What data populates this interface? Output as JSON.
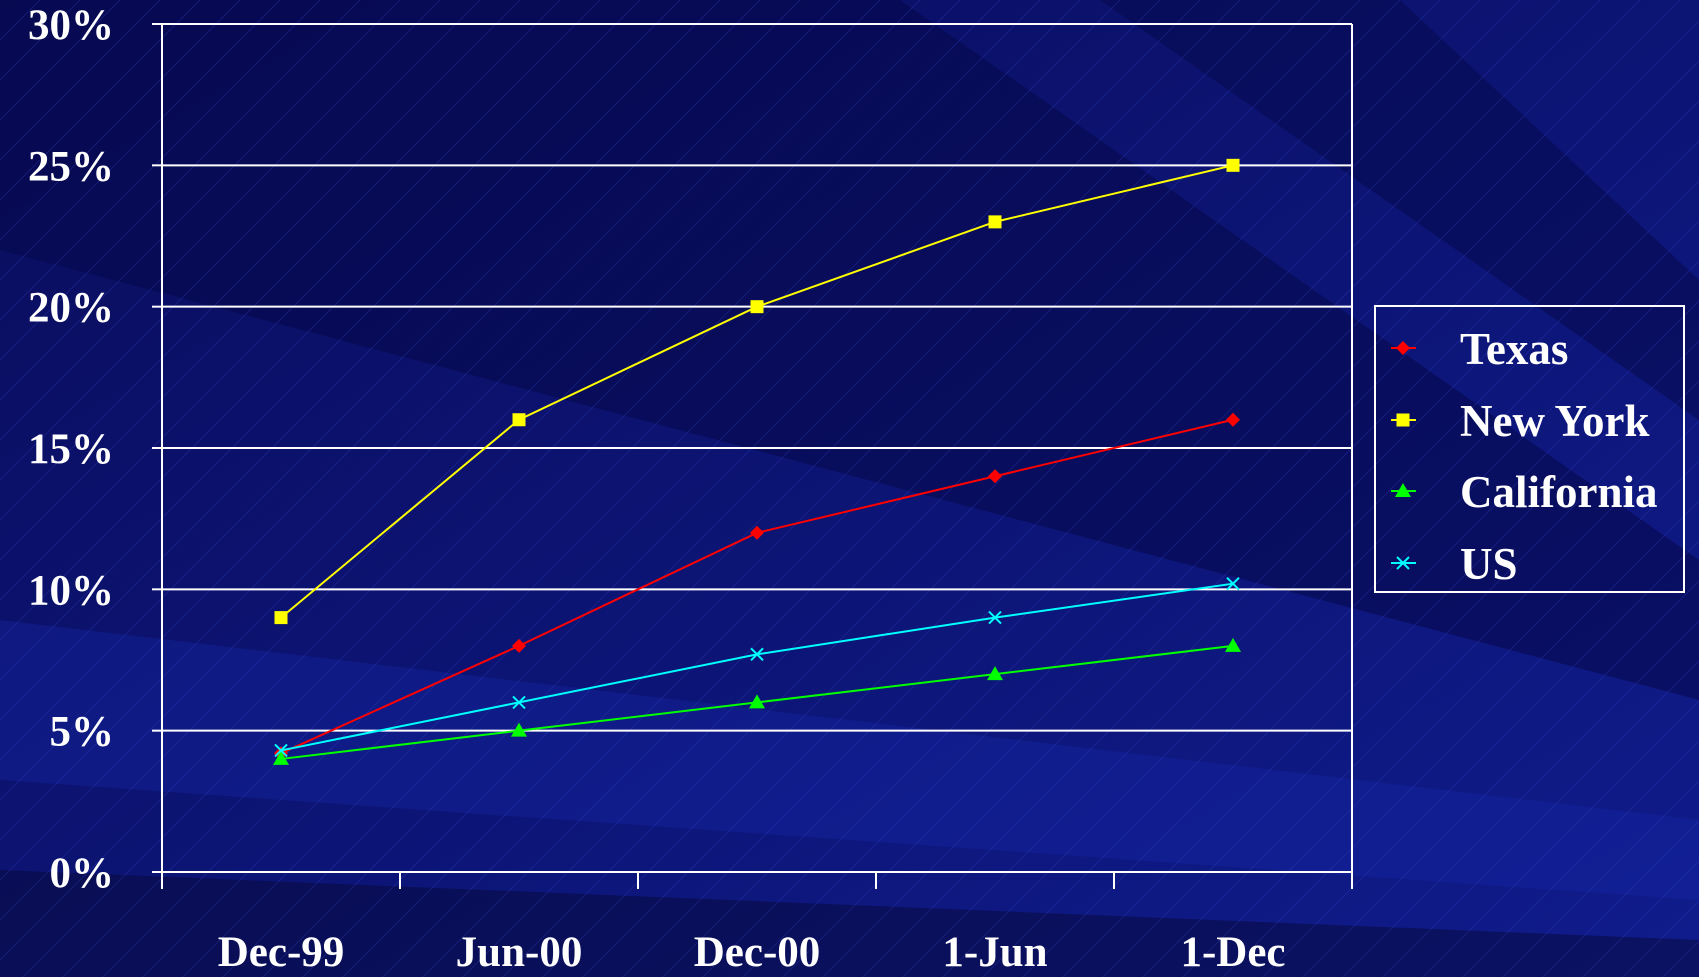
{
  "chart_data": {
    "type": "line",
    "title": "",
    "xlabel": "",
    "ylabel": "",
    "categories": [
      "Dec-99",
      "Jun-00",
      "Dec-00",
      "1-Jun",
      "1-Dec"
    ],
    "ylim": [
      0,
      30
    ],
    "y_ticks": [
      0,
      5,
      10,
      15,
      20,
      25,
      30
    ],
    "y_tick_labels": [
      "0%",
      "5%",
      "10%",
      "15%",
      "20%",
      "25%",
      "30%"
    ],
    "grid": true,
    "legend_position": "right",
    "series": [
      {
        "name": "Texas",
        "values": [
          4.2,
          8,
          12,
          14,
          16
        ],
        "color": "#ff0000",
        "marker": "diamond"
      },
      {
        "name": "New York",
        "values": [
          9,
          16,
          20,
          23,
          25
        ],
        "color": "#ffff00",
        "marker": "square"
      },
      {
        "name": "California",
        "values": [
          4,
          5,
          6,
          7,
          8
        ],
        "color": "#00ff00",
        "marker": "triangle"
      },
      {
        "name": "US",
        "values": [
          4.3,
          6,
          7.7,
          9,
          10.2
        ],
        "color": "#00ffff",
        "marker": "x"
      }
    ]
  }
}
